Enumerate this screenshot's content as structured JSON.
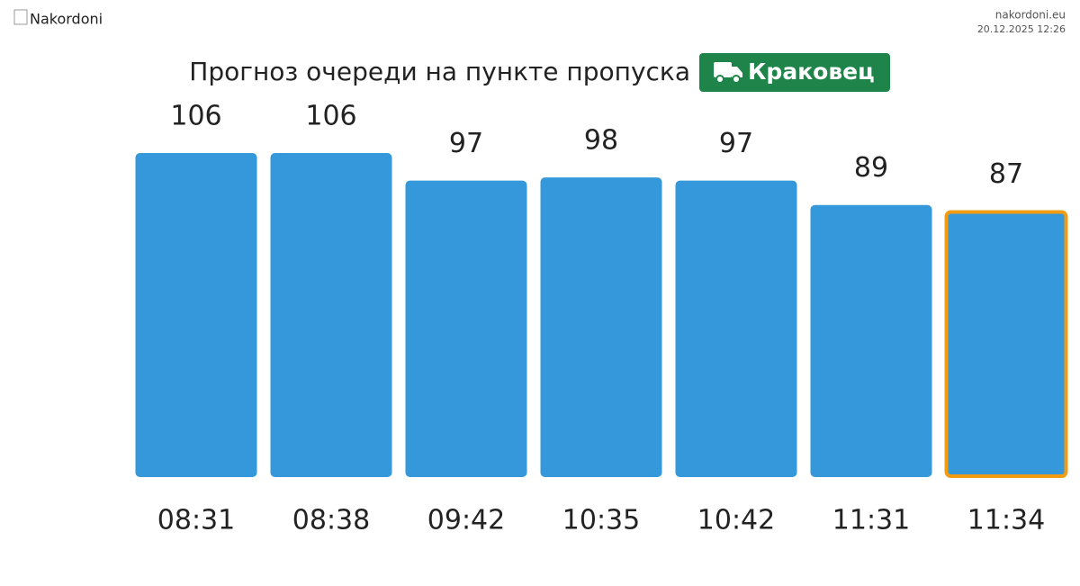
{
  "logo_alt": "Nakordoni",
  "site": "nakordoni.eu",
  "timestamp": "20.12.2025 12:26",
  "chart_data": {
    "type": "bar",
    "title": "Прогноз очереди на пункте пропуска",
    "badge": "Краковец",
    "categories": [
      "08:31",
      "08:38",
      "09:42",
      "10:35",
      "10:42",
      "11:31",
      "11:34"
    ],
    "values": [
      106,
      106,
      97,
      98,
      97,
      89,
      87
    ],
    "color": "#3498db",
    "highlight_index": 6,
    "highlight_color": "#f39c12"
  }
}
